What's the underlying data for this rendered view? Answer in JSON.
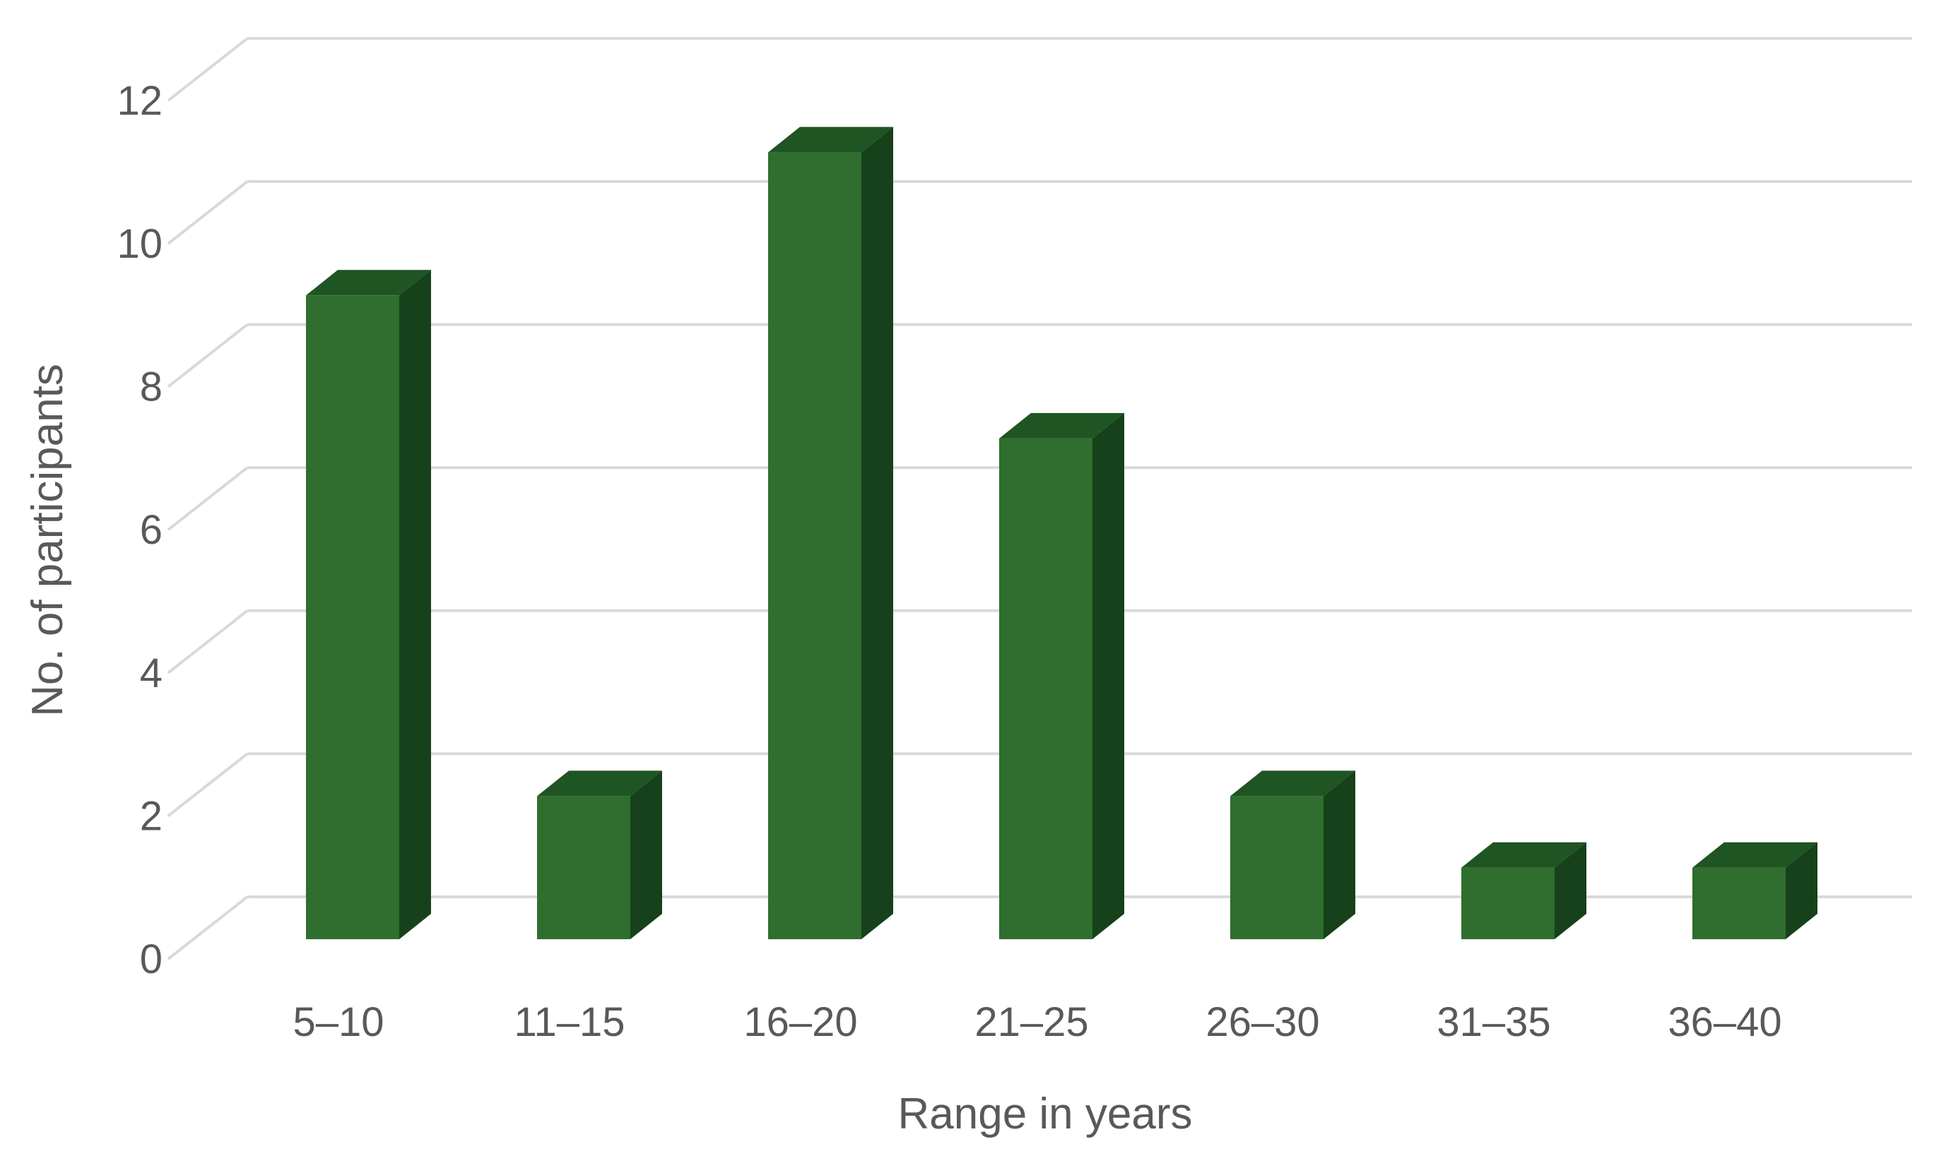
{
  "chart_data": {
    "type": "bar",
    "variant": "3d-column",
    "title": "",
    "categories": [
      "5–10",
      "11–15",
      "16–20",
      "21–25",
      "26–30",
      "31–35",
      "36–40"
    ],
    "values": [
      9,
      2,
      11,
      7,
      2,
      1,
      1
    ],
    "series": [
      {
        "name": "No. of participants",
        "values": [
          9,
          2,
          11,
          7,
          2,
          1,
          1
        ]
      }
    ],
    "xlabel": "Range in years",
    "ylabel": "No. of participants",
    "yticks": [
      0,
      2,
      4,
      6,
      8,
      10,
      12
    ],
    "ylim": [
      0,
      12
    ],
    "grid": true,
    "legend_position": "none",
    "colors": {
      "bar_front": "#2f6e2f",
      "bar_top": "#1f5423",
      "bar_side": "#16411a",
      "gridline": "#d9d9d9",
      "text": "#595959",
      "background": "#ffffff"
    }
  }
}
